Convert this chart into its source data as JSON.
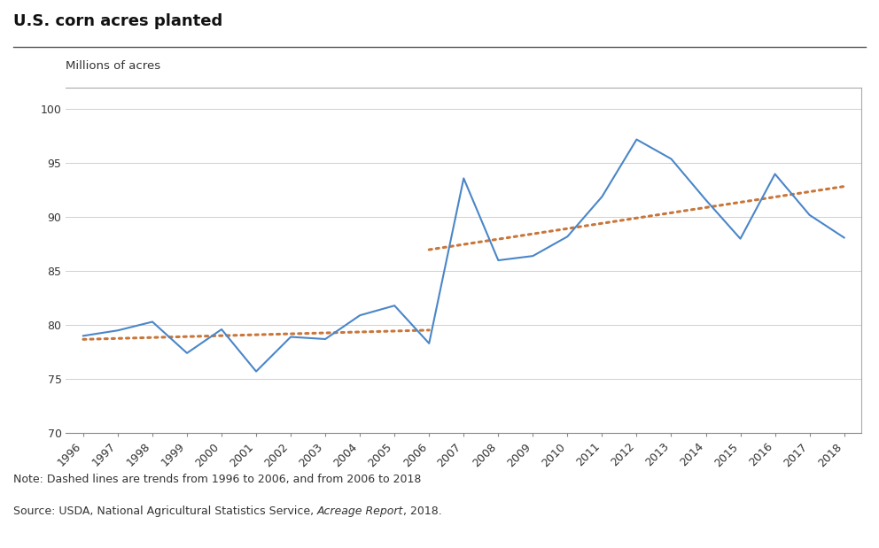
{
  "title": "U.S. corn acres planted",
  "ylabel": "Millions of acres",
  "years": [
    1996,
    1997,
    1998,
    1999,
    2000,
    2001,
    2002,
    2003,
    2004,
    2005,
    2006,
    2007,
    2008,
    2009,
    2010,
    2011,
    2012,
    2013,
    2014,
    2015,
    2016,
    2017,
    2018
  ],
  "values": [
    79.0,
    79.5,
    80.3,
    77.4,
    79.6,
    75.7,
    78.9,
    78.7,
    80.9,
    81.8,
    78.3,
    93.6,
    86.0,
    86.4,
    88.2,
    91.9,
    97.2,
    95.4,
    91.6,
    88.0,
    94.0,
    90.2,
    88.1
  ],
  "line_color": "#4a86c8",
  "trend_color": "#c8763a",
  "ylim": [
    70,
    102
  ],
  "yticks": [
    70,
    75,
    80,
    85,
    90,
    95,
    100
  ],
  "note_text": "Note: Dashed lines are trends from 1996 to 2006, and from 2006 to 2018",
  "source_text_plain": "Source: USDA, National Agricultural Statistics Service, ",
  "source_italic": "Acreage Report",
  "source_end": ", 2018.",
  "bg_color": "#ffffff",
  "plot_bg_color": "#ffffff",
  "grid_color": "#d0d0d0",
  "title_fontsize": 13,
  "axis_label_fontsize": 9.5,
  "tick_fontsize": 9,
  "note_fontsize": 9,
  "box_edge_color": "#aaaaaa"
}
